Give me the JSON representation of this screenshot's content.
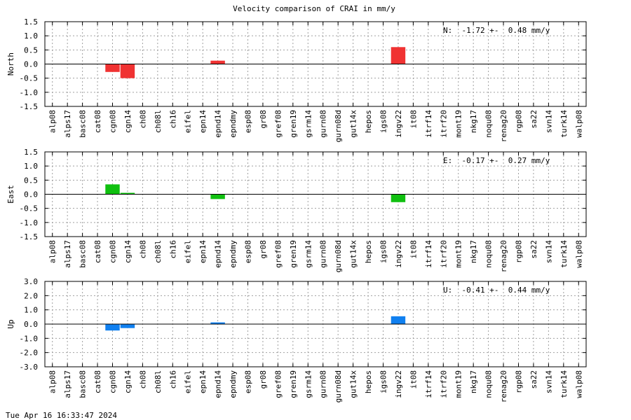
{
  "title": "Velocity comparison of CRAI in mm/y",
  "timestamp": "Tue Apr 16 16:33:47 2024",
  "chart_data": [
    {
      "type": "bar",
      "ylabel": "North",
      "ylim": [
        -1.5,
        1.5
      ],
      "yticks": [
        1.5,
        1.0,
        0.5,
        0.0,
        -0.5,
        -1.0,
        -1.5
      ],
      "ytick_labels": [
        "1.5",
        "1.0",
        "0.5",
        "0.0",
        "-0.5",
        "-1.0",
        "-1.5"
      ],
      "grid": true,
      "color": "#f03232",
      "annotation": "N:  -1.72 +-  0.48 mm/y",
      "annotation_position": "top-right",
      "categories": [
        "alp08",
        "alps17",
        "basc08",
        "cat08",
        "cgn08",
        "cgn14",
        "ch08",
        "ch08l",
        "ch16",
        "eifel",
        "epn14",
        "epnd14",
        "epndmy",
        "esp08",
        "gr08",
        "gref08",
        "gren19",
        "gsrm14",
        "gurn08",
        "gurn08d",
        "gut14x",
        "hepos",
        "igs08",
        "ingv22",
        "it08",
        "itrf14",
        "itrf20",
        "mont19",
        "nkg17",
        "noqu08",
        "renag20",
        "rgp08",
        "sa22",
        "svn14",
        "turk14",
        "walp08"
      ],
      "values": [
        0,
        0,
        0,
        0,
        -0.28,
        -0.5,
        0,
        0,
        0,
        0,
        0,
        0.12,
        0,
        0,
        0,
        0,
        0,
        0,
        0,
        0,
        0,
        0,
        0,
        0.6,
        0,
        0,
        0,
        0,
        0,
        0,
        0,
        0,
        0,
        0,
        0,
        0
      ]
    },
    {
      "type": "bar",
      "ylabel": "East",
      "ylim": [
        -1.5,
        1.5
      ],
      "yticks": [
        1.5,
        1.0,
        0.5,
        0.0,
        -0.5,
        -1.0,
        -1.5
      ],
      "ytick_labels": [
        "1.5",
        "1.0",
        "0.5",
        "0.0",
        "-0.5",
        "-1.0",
        "-1.5"
      ],
      "grid": true,
      "color": "#10c010",
      "annotation": "E:  -0.17 +-  0.27 mm/y",
      "annotation_position": "top-right",
      "categories": [
        "alp08",
        "alps17",
        "basc08",
        "cat08",
        "cgn08",
        "cgn14",
        "ch08",
        "ch08l",
        "ch16",
        "eifel",
        "epn14",
        "epnd14",
        "epndmy",
        "esp08",
        "gr08",
        "gref08",
        "gren19",
        "gsrm14",
        "gurn08",
        "gurn08d",
        "gut14x",
        "hepos",
        "igs08",
        "ingv22",
        "it08",
        "itrf14",
        "itrf20",
        "mont19",
        "nkg17",
        "noqu08",
        "renag20",
        "rgp08",
        "sa22",
        "svn14",
        "turk14",
        "walp08"
      ],
      "values": [
        0,
        0,
        0,
        0,
        0.35,
        0.05,
        0,
        0,
        0,
        0,
        0,
        -0.17,
        0,
        0,
        0,
        0,
        0,
        0,
        0,
        0,
        0,
        0,
        0,
        -0.28,
        0,
        0,
        0,
        0,
        0,
        0,
        0,
        0,
        0,
        0,
        0,
        0
      ]
    },
    {
      "type": "bar",
      "ylabel": "Up",
      "ylim": [
        -3.0,
        3.0
      ],
      "yticks": [
        3.0,
        2.0,
        1.0,
        0.0,
        -1.0,
        -2.0,
        -3.0
      ],
      "ytick_labels": [
        "3.0",
        "2.0",
        "1.0",
        "0.0",
        "-1.0",
        "-2.0",
        "-3.0"
      ],
      "grid": true,
      "color": "#1080f0",
      "annotation": "U:  -0.41 +-  0.44 mm/y",
      "annotation_position": "top-right",
      "categories": [
        "alp08",
        "alps17",
        "basc08",
        "cat08",
        "cgn08",
        "cgn14",
        "ch08",
        "ch08l",
        "ch16",
        "eifel",
        "epn14",
        "epnd14",
        "epndmy",
        "esp08",
        "gr08",
        "gref08",
        "gren19",
        "gsrm14",
        "gurn08",
        "gurn08d",
        "gut14x",
        "hepos",
        "igs08",
        "ingv22",
        "it08",
        "itrf14",
        "itrf20",
        "mont19",
        "nkg17",
        "noqu08",
        "renag20",
        "rgp08",
        "sa22",
        "svn14",
        "turk14",
        "walp08"
      ],
      "values": [
        0,
        0,
        0,
        0,
        -0.45,
        -0.28,
        0,
        0,
        0,
        0,
        0,
        0.12,
        0,
        0,
        0,
        0,
        0,
        0,
        0,
        0,
        0,
        0,
        0,
        0.55,
        0,
        0,
        0,
        0,
        0,
        0,
        0,
        0,
        0,
        0,
        0,
        0
      ]
    }
  ]
}
